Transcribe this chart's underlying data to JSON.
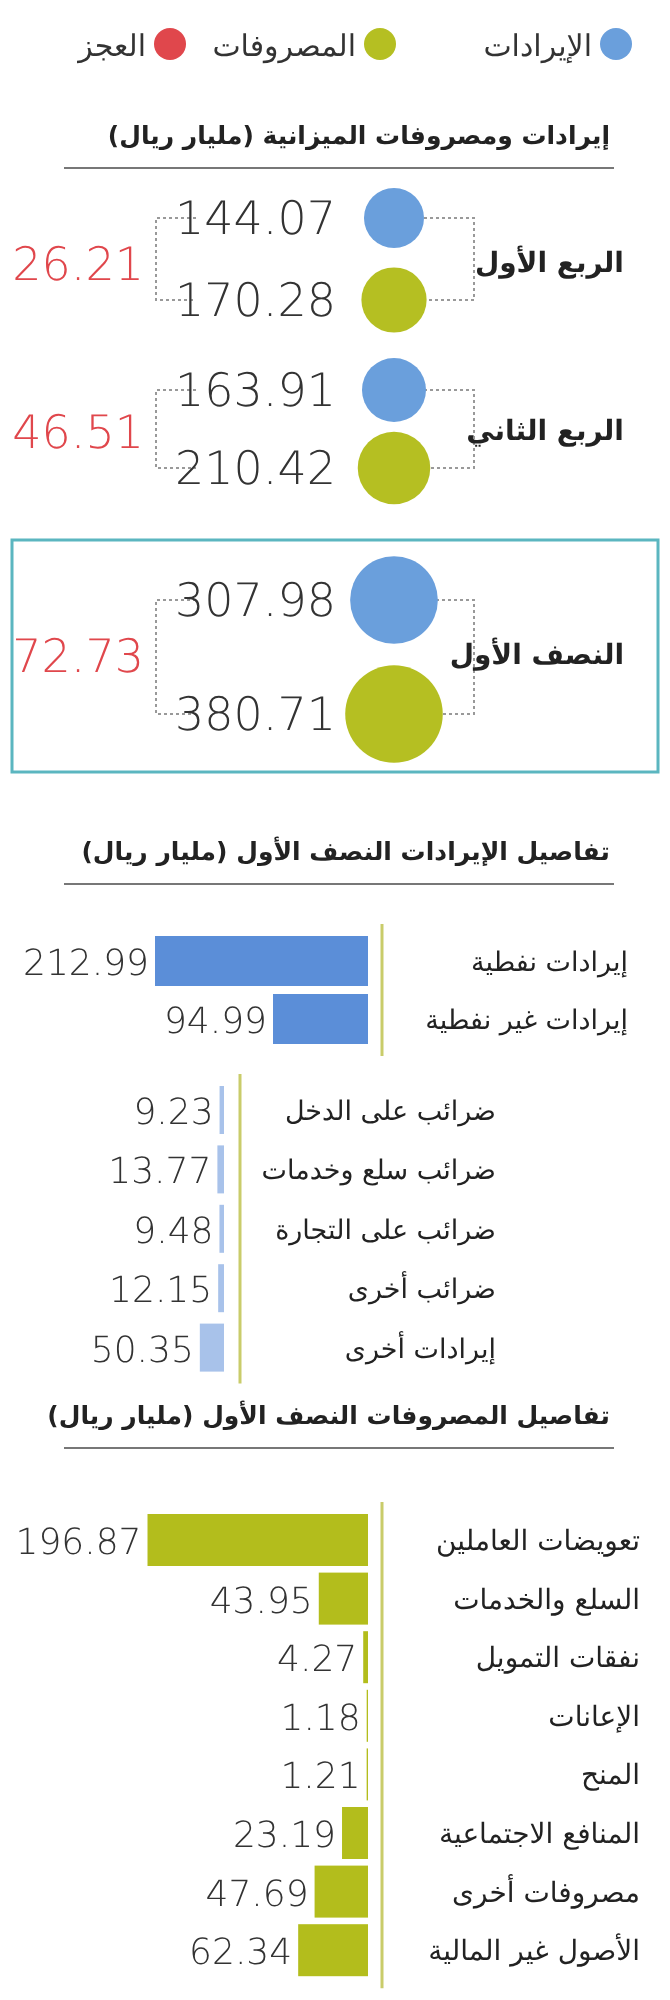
{
  "chart_data": [
    {
      "type": "other",
      "title": "إيرادات ومصروفات الميزانية (مليار ريال)",
      "categories": [
        "الربع الأول",
        "الربع الثاني",
        "النصف الأول"
      ],
      "legend": "top",
      "data_labels": true,
      "series": [
        {
          "name": "الإيرادات",
          "color": "#6a9fdc",
          "values": [
            144.07,
            163.91,
            307.98
          ]
        },
        {
          "name": "المصروفات",
          "color": "#b5bf22",
          "values": [
            170.28,
            210.42,
            380.71
          ]
        },
        {
          "name": "العجز",
          "color": "#e0474c",
          "type": "other",
          "values": [
            26.21,
            46.51,
            72.73
          ]
        }
      ]
    },
    {
      "type": "bar",
      "orientation": "horizontal",
      "title": "تفاصيل الإيرادات النصف الأول (مليار ريال)",
      "categories": [
        "إيرادات نفطية",
        "إيرادات غير نفطية"
      ],
      "values": [
        212.99,
        94.99
      ],
      "color": "#5b8ed8",
      "data_labels": true
    },
    {
      "type": "bar",
      "orientation": "horizontal",
      "categories": [
        "ضرائب على الدخل",
        "ضرائب سلع وخدمات",
        "ضرائب على التجارة",
        "ضرائب أخرى",
        "إيرادات أخرى"
      ],
      "values": [
        9.23,
        13.77,
        9.48,
        12.15,
        50.35
      ],
      "color": "#a8c2ea",
      "data_labels": true
    },
    {
      "type": "bar",
      "orientation": "horizontal",
      "title": "تفاصيل المصروفات النصف الأول (مليار ريال)",
      "categories": [
        "تعويضات العاملين",
        "السلع والخدمات",
        "نفقات التمويل",
        "الإعانات",
        "المنح",
        "المنافع الاجتماعية",
        "مصروفات أخرى",
        "الأصول غير المالية"
      ],
      "values": [
        196.87,
        43.95,
        4.27,
        1.18,
        1.21,
        23.19,
        47.69,
        62.34
      ],
      "color": "#b3bd1c",
      "data_labels": true
    }
  ]
}
